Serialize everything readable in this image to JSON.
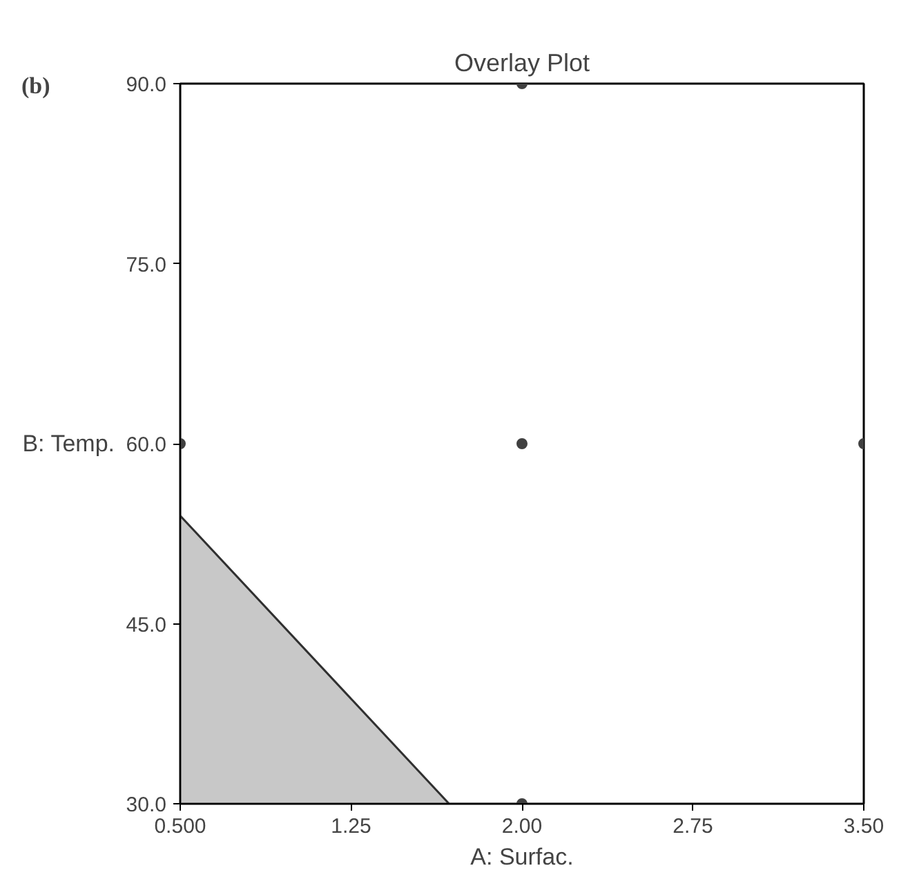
{
  "chart_data": {
    "type": "scatter",
    "title": "Overlay Plot",
    "xlabel": "A: Surfac.",
    "ylabel": "B: Temp.",
    "annotations": [
      "(b)"
    ],
    "xlim": [
      0.5,
      3.5
    ],
    "xticks": [
      {
        "value": 0.5,
        "label": "0.500"
      },
      {
        "value": 1.25,
        "label": "1.25"
      },
      {
        "value": 2.0,
        "label": "2.00"
      },
      {
        "value": 2.75,
        "label": "2.75"
      },
      {
        "value": 3.5,
        "label": "3.50"
      }
    ],
    "ylim": [
      30,
      90
    ],
    "yticks": [
      {
        "value": 30,
        "label": "30.0"
      },
      {
        "value": 45,
        "label": "45.0"
      },
      {
        "value": 60,
        "label": "60.0"
      },
      {
        "value": 75,
        "label": "75.0"
      },
      {
        "value": 90,
        "label": "90.0"
      }
    ],
    "grid": false,
    "series": [
      {
        "type": "area",
        "color": "#c8c8c8",
        "x": [
          0.5,
          1.68
        ],
        "values": [
          54,
          30
        ]
      },
      {
        "marker": "circle",
        "color": "#404040",
        "x": [
          2.0,
          0.5,
          2.0,
          3.5,
          2.0
        ],
        "values": [
          90,
          60,
          60,
          60,
          30
        ]
      }
    ]
  }
}
